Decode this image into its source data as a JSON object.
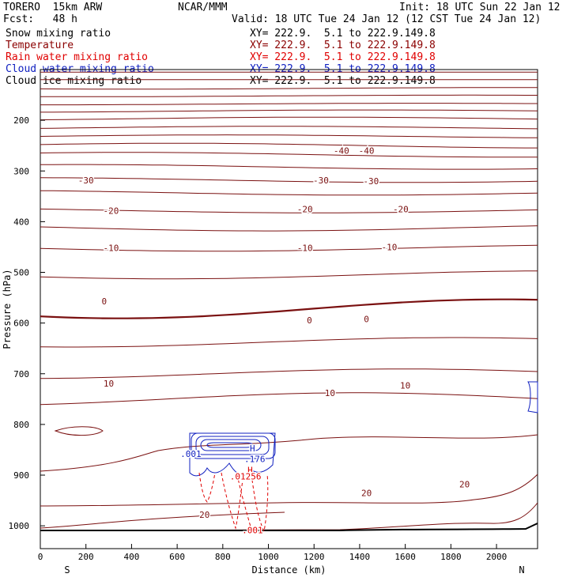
{
  "header": {
    "model": "TORERO  15km ARW",
    "center": "NCAR/MMM",
    "init": "Init: 18 UTC Sun 22 Jan 12",
    "fcst": "Fcst:   48 h",
    "valid": "Valid: 18 UTC Tue 24 Jan 12 (12 CST Tue 24 Jan 12)"
  },
  "legend": [
    {
      "label": "Snow mixing ratio",
      "xy": "XY= 222.9.  5.1 to 222.9.149.8",
      "color": "#000000"
    },
    {
      "label": "Temperature",
      "xy": "XY= 222.9.  5.1 to 222.9.149.8",
      "color": "#8b0000"
    },
    {
      "label": "Rain water mixing ratio",
      "xy": "XY= 222.9.  5.1 to 222.9.149.8",
      "color": "#e00000"
    },
    {
      "label": "Cloud water mixing ratio",
      "xy": "XY= 222.9.  5.1 to 222.9.149.8",
      "color": "#1020c0"
    },
    {
      "label": "Cloud ice mixing ratio",
      "xy": "XY= 222.9.  5.1 to 222.9.149.8",
      "color": "#000000"
    }
  ],
  "chart_data": {
    "type": "contour",
    "title": "Vertical cross section",
    "xlabel": "Distance (km)",
    "ylabel": "Pressure (hPa)",
    "xlim": [
      0,
      2180
    ],
    "ylim": [
      1045,
      100
    ],
    "x_ticks": [
      0,
      200,
      400,
      600,
      800,
      1000,
      1200,
      1400,
      1600,
      1800,
      2000
    ],
    "y_ticks": [
      200,
      300,
      400,
      500,
      600,
      700,
      800,
      900,
      1000
    ],
    "endpoints": {
      "left": "S",
      "right": "N"
    },
    "temperature_contour_labels": [
      {
        "text": "-40",
        "x": 1320,
        "p": 260
      },
      {
        "text": "-40",
        "x": 1430,
        "p": 260
      },
      {
        "text": "-30",
        "x": 200,
        "p": 318
      },
      {
        "text": "-30",
        "x": 1230,
        "p": 318
      },
      {
        "text": "-30",
        "x": 1450,
        "p": 320
      },
      {
        "text": "-20",
        "x": 310,
        "p": 378
      },
      {
        "text": "-20",
        "x": 1160,
        "p": 375
      },
      {
        "text": "-20",
        "x": 1580,
        "p": 375
      },
      {
        "text": "-10",
        "x": 310,
        "p": 452
      },
      {
        "text": "-10",
        "x": 1160,
        "p": 452
      },
      {
        "text": "-10",
        "x": 1530,
        "p": 450
      },
      {
        "text": "0",
        "x": 280,
        "p": 557
      },
      {
        "text": "0",
        "x": 1180,
        "p": 594
      },
      {
        "text": "0",
        "x": 1430,
        "p": 592
      },
      {
        "text": "10",
        "x": 300,
        "p": 719
      },
      {
        "text": "10",
        "x": 1270,
        "p": 738
      },
      {
        "text": "10",
        "x": 1600,
        "p": 723
      },
      {
        "text": "20",
        "x": 720,
        "p": 978
      },
      {
        "text": "20",
        "x": 1430,
        "p": 935
      },
      {
        "text": "20",
        "x": 1860,
        "p": 918
      }
    ],
    "moisture_labels": [
      {
        "text": ".001",
        "x": 660,
        "p": 858,
        "color": "#1020c0"
      },
      {
        "text": "H",
        "x": 930,
        "p": 847,
        "color": "#1020c0"
      },
      {
        "text": ".176",
        "x": 940,
        "p": 868,
        "color": "#1020c0"
      },
      {
        "text": "H",
        "x": 920,
        "p": 890,
        "color": "#e00000"
      },
      {
        "text": ".01256",
        "x": 900,
        "p": 902,
        "color": "#e00000"
      },
      {
        "text": ".001",
        "x": 930,
        "p": 1008,
        "color": "#e00000"
      }
    ],
    "temperature_levels_C": [
      -60,
      -50,
      -40,
      -30,
      -20,
      -10,
      0,
      10,
      20
    ]
  }
}
